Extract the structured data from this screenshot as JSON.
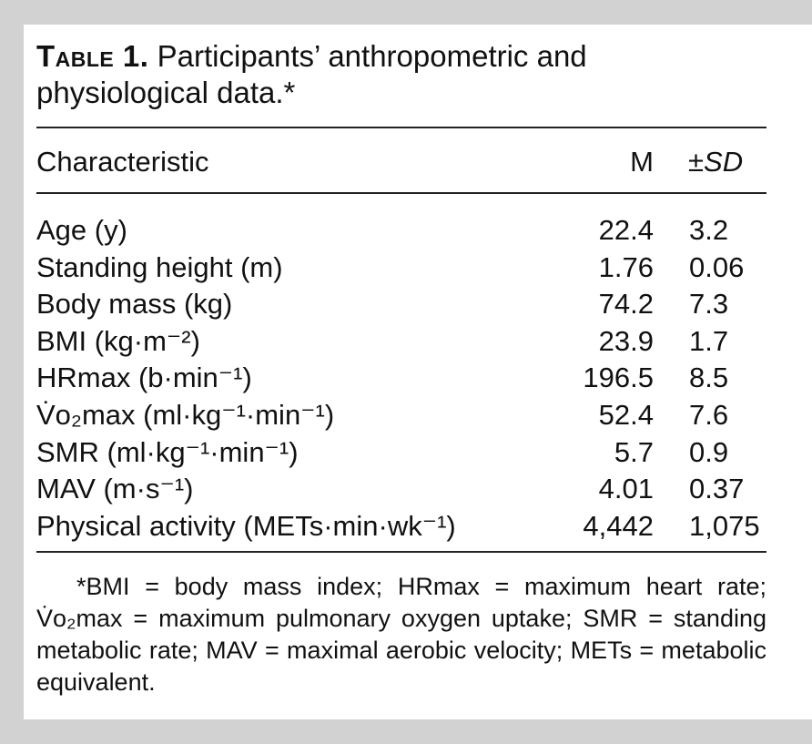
{
  "table": {
    "title_lead": "Table 1.",
    "title_text": " Participants’ anthropometric and physiological data.*",
    "headers": {
      "characteristic": "Characteristic",
      "mean": "M",
      "sd_prefix": "±",
      "sd": "SD"
    },
    "rows": [
      {
        "label": "Age (y)",
        "mean": "22.4",
        "sd": "3.2"
      },
      {
        "label": "Standing height (m)",
        "mean": "1.76",
        "sd": "0.06"
      },
      {
        "label": "Body mass (kg)",
        "mean": "74.2",
        "sd": "7.3"
      },
      {
        "label": "BMI (kg·m⁻²)",
        "mean": "23.9",
        "sd": "1.7"
      },
      {
        "label": "HRmax (b·min⁻¹)",
        "mean": "196.5",
        "sd": "8.5"
      },
      {
        "label": "V̇o₂max (ml·kg⁻¹·min⁻¹)",
        "mean": "52.4",
        "sd": "7.6"
      },
      {
        "label": "SMR (ml·kg⁻¹·min⁻¹)",
        "mean": "5.7",
        "sd": "0.9"
      },
      {
        "label": "MAV (m·s⁻¹)",
        "mean": "4.01",
        "sd": "0.37"
      },
      {
        "label": "Physical activity (METs·min·wk⁻¹)",
        "mean": "4,442",
        "sd": "1,075"
      }
    ],
    "footnote": "*BMI = body mass index; HRmax = maximum heart rate; V̇o₂max = maximum pulmonary oxygen uptake; SMR = standing metabolic rate; MAV = maximal aerobic velocity; METs = metabolic equivalent."
  }
}
